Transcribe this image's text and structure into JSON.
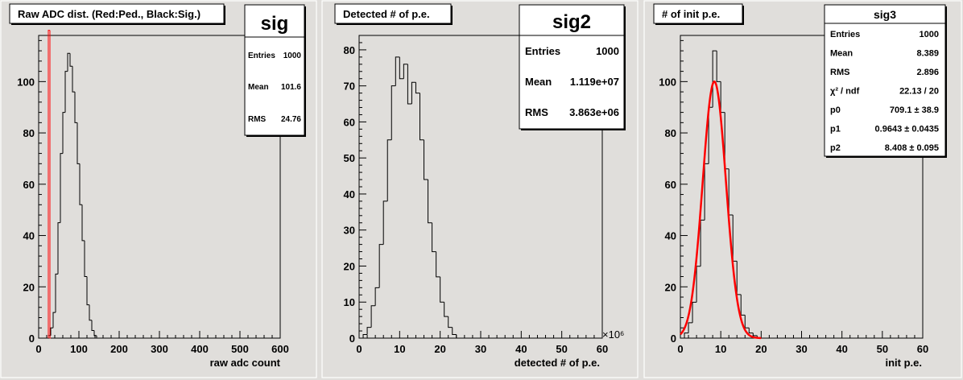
{
  "colors": {
    "background": "#e0dedb",
    "frame": "#ffffff",
    "histogram": "#000000",
    "fit_and_pedestal": "#ff0000",
    "title_box": "#ffffff"
  },
  "panels": [
    {
      "title": "Raw ADC dist. (Red:Ped., Black:Sig.)",
      "stats": {
        "name": "sig",
        "rows": [
          {
            "label": "Entries",
            "value": "1000"
          },
          {
            "label": "Mean",
            "value": "101.6"
          },
          {
            "label": "RMS",
            "value": "24.76"
          }
        ]
      },
      "x_exponent": ""
    },
    {
      "title": "Detected # of p.e.",
      "stats": {
        "name": "sig2",
        "rows": [
          {
            "label": "Entries",
            "value": "1000"
          },
          {
            "label": "Mean",
            "value": "1.119e+07"
          },
          {
            "label": "RMS",
            "value": "3.863e+06"
          }
        ]
      },
      "x_exponent": "×10⁶"
    },
    {
      "title": "# of init p.e.",
      "stats": {
        "name": "sig3",
        "rows": [
          {
            "label": "Entries",
            "value": "1000"
          },
          {
            "label": "Mean",
            "value": "8.389"
          },
          {
            "label": "RMS",
            "value": "2.896"
          },
          {
            "label": "χ² / ndf",
            "value": "22.13 / 20"
          },
          {
            "label": "p0",
            "value": "709.1 ± 38.9"
          },
          {
            "label": "p1",
            "value": "0.9643 ± 0.0435"
          },
          {
            "label": "p2",
            "value": "8.408 ± 0.095"
          }
        ]
      },
      "x_exponent": ""
    }
  ],
  "chart_data": [
    {
      "type": "histogram",
      "title": "Raw ADC dist. (Red:Ped., Black:Sig.)",
      "xlabel": "raw adc count",
      "ylabel": "",
      "xlim": [
        0,
        600
      ],
      "ylim": [
        0,
        118
      ],
      "x_ticks": [
        0,
        100,
        200,
        300,
        400,
        500,
        600
      ],
      "y_ticks": [
        0,
        20,
        40,
        60,
        80,
        100
      ],
      "series": [
        {
          "name": "Sig.",
          "color": "#000000",
          "bin_edges": [
            24,
            30,
            36,
            42,
            48,
            54,
            60,
            66,
            72,
            78,
            84,
            90,
            96,
            102,
            108,
            114,
            120,
            126,
            132,
            138,
            144,
            150,
            156
          ],
          "counts": [
            1,
            4,
            10,
            25,
            45,
            72,
            88,
            104,
            111,
            106,
            96,
            84,
            68,
            52,
            38,
            24,
            13,
            7,
            3,
            1,
            0,
            0
          ]
        },
        {
          "name": "Ped.",
          "color": "#ff0000",
          "bin_edges": [
            24,
            26,
            28,
            30
          ],
          "counts": [
            120,
            120,
            0
          ]
        }
      ]
    },
    {
      "type": "histogram",
      "title": "Detected # of p.e.",
      "xlabel": "detected # of p.e.",
      "ylabel": "",
      "x_exponent": "×10⁶",
      "xlim": [
        0,
        60
      ],
      "ylim": [
        0,
        84
      ],
      "x_ticks": [
        0,
        10,
        20,
        30,
        40,
        50,
        60
      ],
      "y_ticks": [
        0,
        10,
        20,
        30,
        40,
        50,
        60,
        70,
        80
      ],
      "series": [
        {
          "name": "sig2",
          "color": "#000000",
          "bin_edges": [
            1,
            2,
            3,
            4,
            5,
            6,
            7,
            8,
            9,
            10,
            11,
            12,
            13,
            14,
            15,
            16,
            17,
            18,
            19,
            20,
            21,
            22,
            23,
            24
          ],
          "counts": [
            1,
            3,
            9,
            14,
            26,
            38,
            55,
            70,
            78,
            72,
            76,
            65,
            71,
            68,
            55,
            44,
            32,
            24,
            17,
            10,
            6,
            3,
            1
          ]
        }
      ]
    },
    {
      "type": "histogram",
      "title": "# of init p.e.",
      "xlabel": "init p.e.",
      "ylabel": "",
      "xlim": [
        0,
        60
      ],
      "ylim": [
        0,
        118
      ],
      "x_ticks": [
        0,
        10,
        20,
        30,
        40,
        50,
        60
      ],
      "y_ticks": [
        0,
        20,
        40,
        60,
        80,
        100
      ],
      "series": [
        {
          "name": "sig3",
          "color": "#000000",
          "bin_edges": [
            0,
            1,
            2,
            3,
            4,
            5,
            6,
            7,
            8,
            9,
            10,
            11,
            12,
            13,
            14,
            15,
            16,
            17,
            18,
            19,
            20
          ],
          "counts": [
            0,
            2,
            6,
            14,
            28,
            46,
            68,
            90,
            112,
            100,
            88,
            66,
            48,
            30,
            17,
            9,
            4,
            2,
            1,
            0
          ]
        }
      ],
      "fit": {
        "function": "gaus",
        "color": "#ff0000",
        "p0": 709.1,
        "p1": 0.9643,
        "p2": 8.408,
        "peak": 100,
        "sigma": 2.896,
        "range": [
          0,
          20
        ]
      }
    }
  ]
}
